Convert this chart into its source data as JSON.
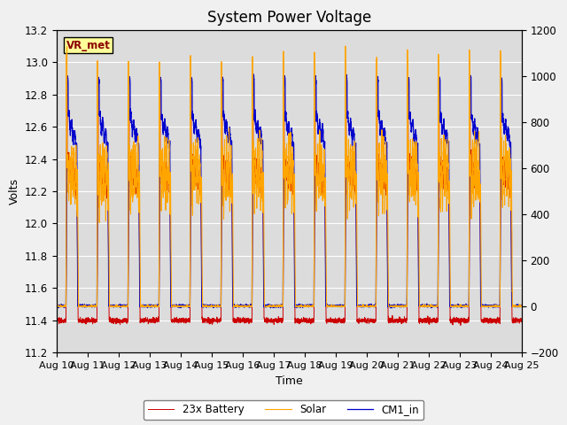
{
  "title": "System Power Voltage",
  "xlabel": "Time",
  "ylabel": "Volts",
  "left_ylim": [
    11.2,
    13.2
  ],
  "right_ylim": [
    -200,
    1200
  ],
  "left_yticks": [
    11.2,
    11.4,
    11.6,
    11.8,
    12.0,
    12.2,
    12.4,
    12.6,
    12.8,
    13.0,
    13.2
  ],
  "right_yticks": [
    -200,
    0,
    200,
    400,
    600,
    800,
    1000,
    1200
  ],
  "n_days": 15,
  "xtick_labels": [
    "Aug 10",
    "Aug 11",
    "Aug 12",
    "Aug 13",
    "Aug 14",
    "Aug 15",
    "Aug 16",
    "Aug 17",
    "Aug 18",
    "Aug 19",
    "Aug 20",
    "Aug 21",
    "Aug 22",
    "Aug 23",
    "Aug 24",
    "Aug 25"
  ],
  "colors": {
    "battery": "#cc0000",
    "solar": "#ffa500",
    "cm1": "#0000cc",
    "plot_bg": "#dcdcdc",
    "fig_bg": "#f0f0f0",
    "grid": "#ffffff"
  },
  "legend_labels": [
    "23x Battery",
    "Solar",
    "CM1_in"
  ],
  "vr_met_label": "VR_met",
  "title_fontsize": 12,
  "axis_fontsize": 9,
  "tick_fontsize": 8.5
}
